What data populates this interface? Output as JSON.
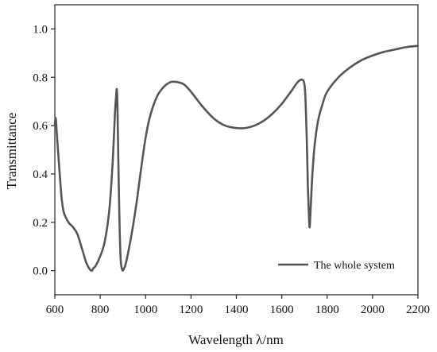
{
  "chart_data": {
    "type": "line",
    "title": "",
    "xlabel": "Wavelength λ/nm",
    "ylabel": "Transmittance",
    "xlim": [
      600,
      2200
    ],
    "ylim": [
      -0.1,
      1.1
    ],
    "x_ticks": [
      600,
      800,
      1000,
      1200,
      1400,
      1600,
      1800,
      2000,
      2200
    ],
    "y_ticks": [
      0.0,
      0.2,
      0.4,
      0.6,
      0.8,
      1.0
    ],
    "x_tick_labels": [
      "600",
      "800",
      "1000",
      "1200",
      "1400",
      "1600",
      "1800",
      "2000",
      "2200"
    ],
    "y_tick_labels": [
      "0.0",
      "0.2",
      "0.4",
      "0.6",
      "0.8",
      "1.0"
    ],
    "grid": false,
    "legend_position": "bottom-right",
    "series": [
      {
        "name": "The whole system",
        "color": "#555555",
        "x": [
          600,
          604,
          610,
          620,
          630,
          640,
          660,
          680,
          700,
          720,
          740,
          760,
          770,
          780,
          800,
          820,
          840,
          855,
          865,
          870,
          873,
          876,
          880,
          885,
          890,
          895,
          900,
          905,
          910,
          920,
          940,
          960,
          980,
          1000,
          1020,
          1050,
          1080,
          1110,
          1140,
          1170,
          1200,
          1250,
          1300,
          1350,
          1400,
          1440,
          1480,
          1520,
          1560,
          1600,
          1640,
          1670,
          1690,
          1700,
          1705,
          1710,
          1715,
          1720,
          1723,
          1727,
          1735,
          1745,
          1760,
          1780,
          1800,
          1850,
          1900,
          1950,
          2000,
          2050,
          2100,
          2150,
          2200
        ],
        "y": [
          0.6,
          0.63,
          0.55,
          0.42,
          0.3,
          0.24,
          0.2,
          0.18,
          0.15,
          0.09,
          0.03,
          0.0,
          0.01,
          0.02,
          0.06,
          0.12,
          0.25,
          0.45,
          0.65,
          0.72,
          0.75,
          0.68,
          0.45,
          0.2,
          0.05,
          0.01,
          0.0,
          0.01,
          0.02,
          0.06,
          0.16,
          0.28,
          0.42,
          0.55,
          0.64,
          0.72,
          0.76,
          0.78,
          0.78,
          0.77,
          0.74,
          0.68,
          0.63,
          0.6,
          0.59,
          0.59,
          0.6,
          0.62,
          0.65,
          0.69,
          0.74,
          0.78,
          0.79,
          0.77,
          0.7,
          0.55,
          0.35,
          0.22,
          0.18,
          0.25,
          0.4,
          0.52,
          0.62,
          0.69,
          0.74,
          0.8,
          0.84,
          0.87,
          0.89,
          0.905,
          0.915,
          0.925,
          0.93
        ]
      }
    ]
  }
}
